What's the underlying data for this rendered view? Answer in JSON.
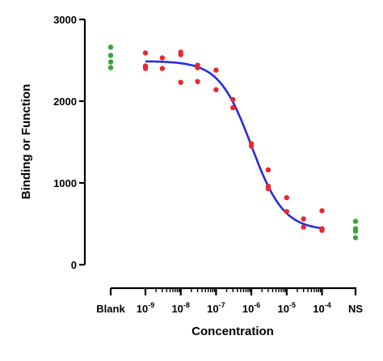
{
  "chart_data": {
    "type": "scatter",
    "xlabel": "Concentration",
    "ylabel": "Binding or Function",
    "ylim": [
      0,
      3000
    ],
    "y_ticks": [
      0,
      1000,
      2000,
      3000
    ],
    "x_scale": "log",
    "x_ticks": [
      {
        "exp": "-9",
        "value": 1e-09
      },
      {
        "exp": "-8",
        "value": 1e-08
      },
      {
        "exp": "-7",
        "value": 1e-07
      },
      {
        "exp": "-6",
        "value": 1e-06
      },
      {
        "exp": "-5",
        "value": 1e-05
      },
      {
        "exp": "-4",
        "value": 0.0001
      }
    ],
    "x_tick_base": "10",
    "blank_label": "Blank",
    "ns_label": "NS",
    "colors": {
      "data": "#e8282f",
      "controls": "#3aa53a",
      "curve": "#2a2adf",
      "axis": "#000000"
    },
    "series": [
      {
        "values_points": [
          {
            "x": 1e-09,
            "y": 2590
          },
          {
            "x": 1e-09,
            "y": 2430
          },
          {
            "x": 1e-09,
            "y": 2400
          },
          {
            "x": 3e-09,
            "y": 2530
          },
          {
            "x": 3e-09,
            "y": 2400
          },
          {
            "x": 1e-08,
            "y": 2600
          },
          {
            "x": 1e-08,
            "y": 2570
          },
          {
            "x": 1e-08,
            "y": 2230
          },
          {
            "x": 3e-08,
            "y": 2440
          },
          {
            "x": 3e-08,
            "y": 2410
          },
          {
            "x": 3e-08,
            "y": 2240
          },
          {
            "x": 1e-07,
            "y": 2380
          },
          {
            "x": 1e-07,
            "y": 2140
          },
          {
            "x": 3e-07,
            "y": 2020
          },
          {
            "x": 3e-07,
            "y": 1920
          },
          {
            "x": 1e-06,
            "y": 1480
          },
          {
            "x": 1e-06,
            "y": 1450
          },
          {
            "x": 3e-06,
            "y": 1160
          },
          {
            "x": 3e-06,
            "y": 960
          },
          {
            "x": 3e-06,
            "y": 930
          },
          {
            "x": 1e-05,
            "y": 820
          },
          {
            "x": 1e-05,
            "y": 650
          },
          {
            "x": 3e-05,
            "y": 560
          },
          {
            "x": 3e-05,
            "y": 460
          },
          {
            "x": 0.0001,
            "y": 660
          },
          {
            "x": 0.0001,
            "y": 440
          },
          {
            "x": 0.0001,
            "y": 420
          }
        ]
      }
    ],
    "blank_values": [
      2660,
      2560,
      2480,
      2410
    ],
    "ns_values": [
      530,
      440,
      410,
      330
    ],
    "fit": {
      "type": "sigmoid",
      "top": 2490,
      "bottom": 420,
      "log_ec50": -6.0,
      "hill": -0.95,
      "x_range": [
        1e-09,
        0.0001
      ]
    }
  }
}
